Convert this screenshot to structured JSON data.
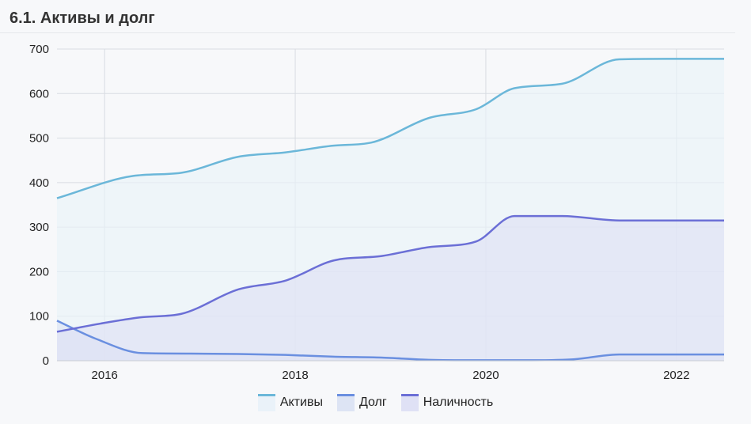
{
  "section": {
    "title": "6.1. Активы и долг"
  },
  "chart_data": {
    "type": "area",
    "x_ticks": [
      "2016",
      "2018",
      "2020",
      "2022"
    ],
    "xlim": [
      2015.5,
      2022.5
    ],
    "ylim": [
      0,
      700
    ],
    "y_ticks": [
      0,
      100,
      200,
      300,
      400,
      500,
      600,
      700
    ],
    "grid": true,
    "legend_position": "bottom",
    "series": [
      {
        "name": "Активы",
        "color": "#6bb7d9",
        "fill": "#eaf2f9",
        "x": [
          2015.5,
          2016.3,
          2016.8,
          2017.4,
          2017.9,
          2018.4,
          2018.8,
          2019.4,
          2019.9,
          2020.3,
          2020.8,
          2021.4,
          2021.9,
          2022.5
        ],
        "y": [
          365,
          415,
          422,
          458,
          468,
          483,
          490,
          545,
          565,
          612,
          622,
          677,
          678,
          678
        ]
      },
      {
        "name": "Долг",
        "color": "#6a8fe0",
        "fill": "#dde4f4",
        "x": [
          2015.5,
          2015.9,
          2016.4,
          2016.9,
          2017.4,
          2017.9,
          2018.4,
          2018.9,
          2019.4,
          2019.9,
          2020.4,
          2020.9,
          2021.4,
          2022.5
        ],
        "y": [
          90,
          50,
          17,
          16,
          15,
          13,
          9,
          7,
          2,
          1,
          1,
          3,
          14,
          14
        ]
      },
      {
        "name": "Наличность",
        "color": "#6b6fd6",
        "fill": "#dfe1f5",
        "x": [
          2015.5,
          2016.0,
          2016.4,
          2016.8,
          2017.4,
          2017.9,
          2018.4,
          2018.9,
          2019.4,
          2019.9,
          2020.3,
          2020.8,
          2021.4,
          2022.5
        ],
        "y": [
          65,
          85,
          98,
          105,
          160,
          180,
          225,
          235,
          255,
          268,
          325,
          325,
          315,
          315
        ]
      }
    ]
  }
}
